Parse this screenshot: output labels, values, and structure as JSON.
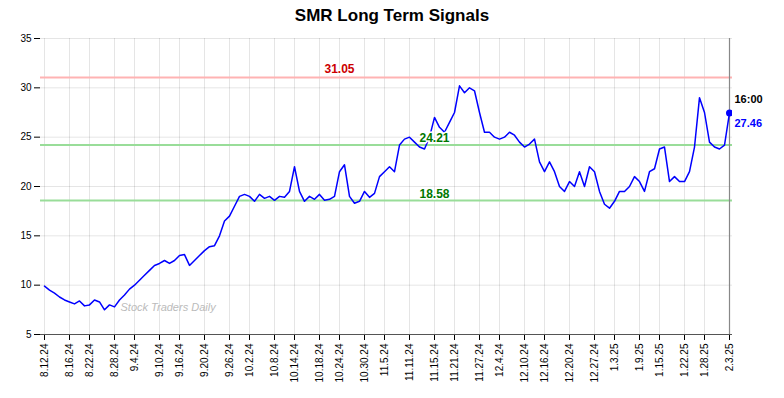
{
  "chart_data": {
    "type": "line",
    "title": "SMR Long Term Signals",
    "color": "blue",
    "grid": true,
    "ylim": [
      5,
      35
    ],
    "yticks": [
      5,
      10,
      15,
      20,
      25,
      30,
      35
    ],
    "categories": [
      "8.12.24",
      null,
      null,
      null,
      null,
      "8.16.24",
      null,
      null,
      null,
      "8.22.24",
      null,
      null,
      null,
      null,
      "8.28.24",
      null,
      null,
      null,
      "9.4.24",
      null,
      null,
      null,
      null,
      "9.10.24",
      null,
      null,
      null,
      "9.16.24",
      null,
      null,
      null,
      null,
      "9.20.24",
      null,
      null,
      null,
      null,
      "9.26.24",
      null,
      null,
      null,
      "10.2.24",
      null,
      null,
      null,
      null,
      "10.8.24",
      null,
      null,
      null,
      "10.14.24",
      null,
      null,
      null,
      null,
      "10.18.24",
      null,
      null,
      null,
      "10.24.24",
      null,
      null,
      null,
      null,
      "10.30.24",
      null,
      null,
      null,
      "11.5.24",
      null,
      null,
      null,
      null,
      "11.11.24",
      null,
      null,
      null,
      null,
      "11.15.24",
      null,
      null,
      null,
      "11.21.24",
      null,
      null,
      null,
      null,
      "11.27.24",
      null,
      null,
      null,
      "12.4.24",
      null,
      null,
      null,
      null,
      "12.10.24",
      null,
      null,
      null,
      "12.16.24",
      null,
      null,
      null,
      null,
      "12.20.24",
      null,
      null,
      null,
      null,
      "12.27.24",
      null,
      null,
      null,
      "1.3.25",
      null,
      null,
      null,
      null,
      "1.9.25",
      null,
      null,
      null,
      "1.15.25",
      null,
      null,
      null,
      null,
      "1.22.25",
      null,
      null,
      null,
      "1.28.25",
      null,
      null,
      null,
      null,
      "2.3.25"
    ],
    "values": [
      9.9,
      9.5,
      9.2,
      8.8,
      8.5,
      8.3,
      8.1,
      8.4,
      7.9,
      8.0,
      8.5,
      8.3,
      7.5,
      8.0,
      7.8,
      8.5,
      9.0,
      9.6,
      10.0,
      10.5,
      11.0,
      11.5,
      12.0,
      12.2,
      12.5,
      12.2,
      12.5,
      13.0,
      13.1,
      12.0,
      12.5,
      13.0,
      13.5,
      13.9,
      14.0,
      15.0,
      16.5,
      17.0,
      18.0,
      19.0,
      19.2,
      19.0,
      18.5,
      19.2,
      18.8,
      19.0,
      18.6,
      19.0,
      18.9,
      19.5,
      22.0,
      19.5,
      18.5,
      19.0,
      18.7,
      19.2,
      18.6,
      18.7,
      19.0,
      21.5,
      22.2,
      19.0,
      18.3,
      18.5,
      19.5,
      18.9,
      19.3,
      21.0,
      21.5,
      22.0,
      21.5,
      24.2,
      24.8,
      25.0,
      24.5,
      24.0,
      23.8,
      25.0,
      27.0,
      26.0,
      25.5,
      26.5,
      27.5,
      30.2,
      29.5,
      30.0,
      29.7,
      27.5,
      25.5,
      25.5,
      25.0,
      24.8,
      25.0,
      25.5,
      25.2,
      24.5,
      24.0,
      24.3,
      24.8,
      22.5,
      21.5,
      22.5,
      21.5,
      20.0,
      19.5,
      20.5,
      20.0,
      21.5,
      20.0,
      22.0,
      21.5,
      19.5,
      18.2,
      17.8,
      18.5,
      19.5,
      19.5,
      20.0,
      21.0,
      20.5,
      19.5,
      21.5,
      21.8,
      23.8,
      24.0,
      20.5,
      21.0,
      20.5,
      20.5,
      21.5,
      24.0,
      29.0,
      27.5,
      24.5,
      24.0,
      23.8,
      24.2,
      27.46
    ],
    "reference_lines": [
      {
        "y": 31.05,
        "color": "#ffb3b3",
        "label_color": "#cc0000"
      },
      {
        "y": 24.21,
        "color": "#99dd99",
        "label_color": "#007700"
      },
      {
        "y": 18.58,
        "color": "#99dd99",
        "label_color": "#007700"
      }
    ],
    "last_point": {
      "value": 27.46,
      "label": "16:00",
      "color": "blue",
      "label_color": "black"
    },
    "annotations": [
      {
        "text": "Stock Traders Daily",
        "color": "#bbbbbb"
      }
    ]
  }
}
